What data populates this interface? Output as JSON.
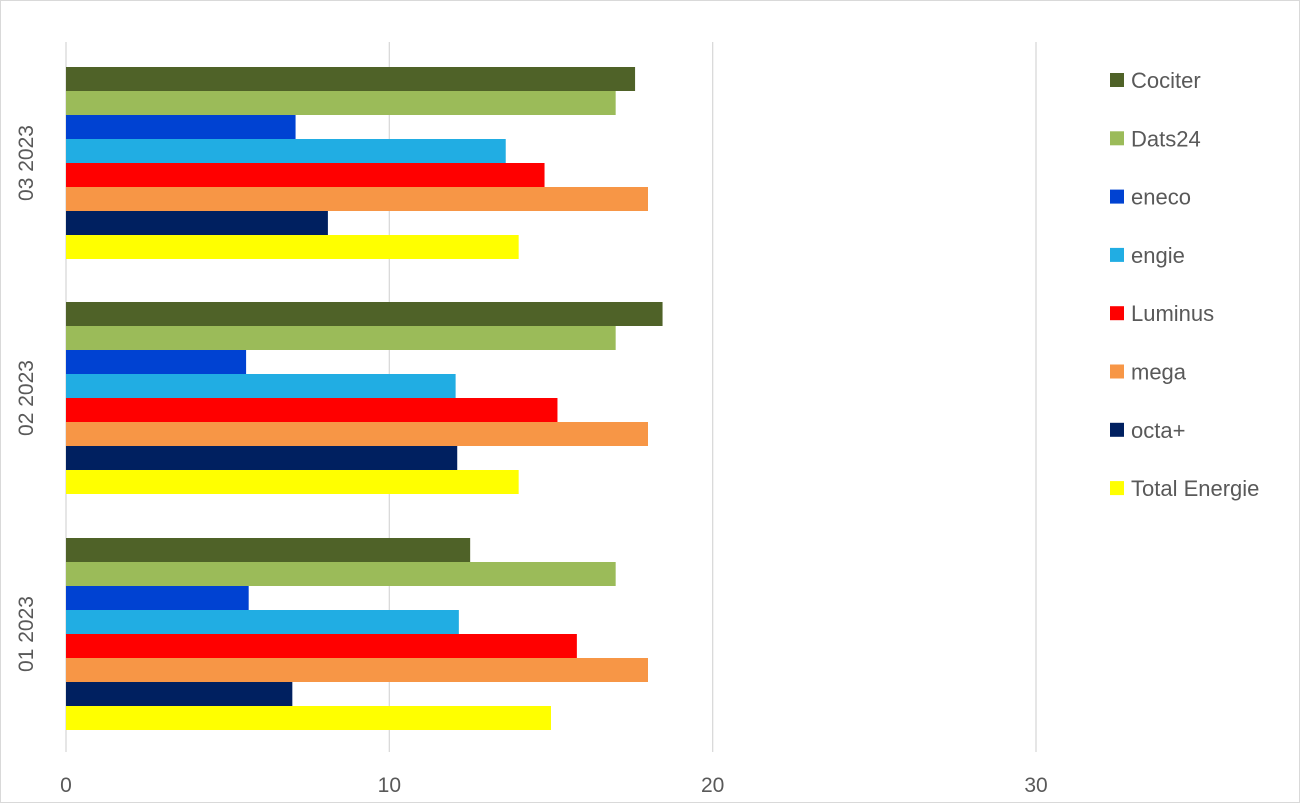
{
  "chart_data": {
    "type": "bar",
    "orientation": "horizontal",
    "title": "",
    "xlabel": "",
    "ylabel": "",
    "xlim": [
      0,
      30
    ],
    "xticks": [
      0,
      10,
      20,
      30
    ],
    "grid": true,
    "legend_position": "right",
    "categories": [
      "01 2023",
      "02 2023",
      "03 2023"
    ],
    "series": [
      {
        "name": "Cociter",
        "color": "#4f6228",
        "values": [
          12.5,
          18.45,
          17.6
        ]
      },
      {
        "name": "Dats24",
        "color": "#9bbb59",
        "values": [
          17.0,
          17.0,
          17.0
        ]
      },
      {
        "name": "eneco",
        "color": "#0042d2",
        "values": [
          5.65,
          5.57,
          7.1
        ]
      },
      {
        "name": "engie",
        "color": "#21ade3",
        "values": [
          12.15,
          12.05,
          13.6
        ]
      },
      {
        "name": "Luminus",
        "color": "#ff0000",
        "values": [
          15.8,
          15.2,
          14.8
        ]
      },
      {
        "name": "mega",
        "color": "#f79646",
        "values": [
          18.0,
          18.0,
          18.0
        ]
      },
      {
        "name": "octa+",
        "color": "#002060",
        "values": [
          7.0,
          12.1,
          8.1
        ]
      },
      {
        "name": "Total Energie",
        "color": "#ffff00",
        "values": [
          15.0,
          14.0,
          14.0
        ]
      }
    ]
  }
}
